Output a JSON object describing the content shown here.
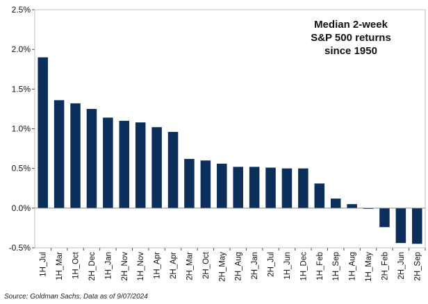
{
  "chart_data": {
    "type": "bar",
    "title_lines": [
      "Median 2-week",
      "S&P 500 returns",
      "since 1950"
    ],
    "categories": [
      "1H_Jul",
      "1H_Mar",
      "1H_Oct",
      "2H_Dec",
      "1H_Jan",
      "2H_Nov",
      "1H_Nov",
      "1H_Apr",
      "2H_Apr",
      "2H_Mar",
      "2H_Oct",
      "2H_May",
      "2H_Aug",
      "2H_Jan",
      "2H_Jul",
      "1H_Jun",
      "1H_Dec",
      "1H_Feb",
      "1H_Sep",
      "1H_Aug",
      "1H_May",
      "2H_Feb",
      "2H_Jun",
      "2H_Sep"
    ],
    "values": [
      1.9,
      1.36,
      1.32,
      1.25,
      1.14,
      1.1,
      1.08,
      1.02,
      0.96,
      0.62,
      0.6,
      0.56,
      0.52,
      0.52,
      0.51,
      0.5,
      0.5,
      0.31,
      0.12,
      0.05,
      -0.01,
      -0.24,
      -0.44,
      -0.45
    ],
    "yticks": [
      "2.5%",
      "2.0%",
      "1.5%",
      "1.0%",
      "0.5%",
      "0.0%",
      "-0.5%"
    ],
    "ytick_values": [
      2.5,
      2.0,
      1.5,
      1.0,
      0.5,
      0.0,
      -0.5
    ],
    "ylim": [
      -0.5,
      2.5
    ],
    "xlabel": "",
    "ylabel": "",
    "grid": false,
    "bar_color": "#0b2f5a",
    "source": "Source: Goldman Sachs, Data as of 9/07/2024"
  }
}
